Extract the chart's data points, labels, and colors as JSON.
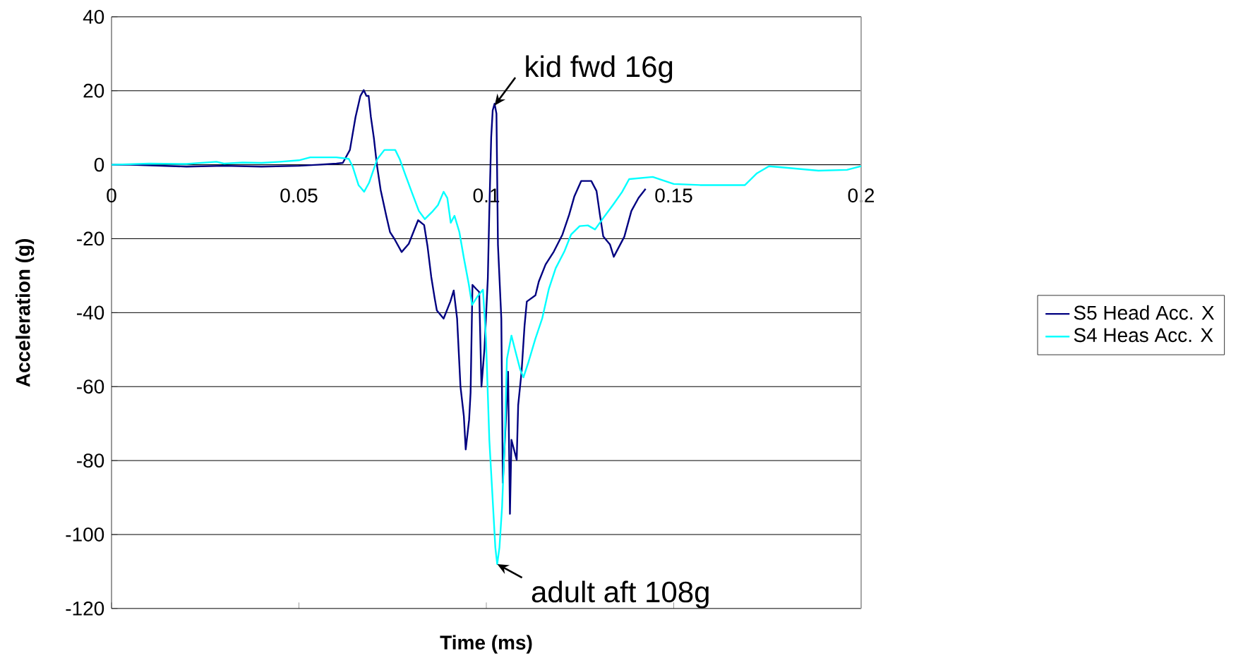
{
  "chart_data": {
    "type": "line",
    "xlabel": "Time (ms)",
    "ylabel": "Acceleration (g)",
    "xlim": [
      0,
      0.2
    ],
    "ylim": [
      -120,
      40
    ],
    "xticks": [
      0,
      0.05,
      0.1,
      0.15,
      0.2
    ],
    "yticks": [
      -120,
      -100,
      -80,
      -60,
      -40,
      -20,
      0,
      20,
      40
    ],
    "grid": "y",
    "legend": "right",
    "marker": "none",
    "line_style": "solid",
    "annotations": [
      {
        "text": "kid fwd 16g",
        "x": 0.1022,
        "y": 16
      },
      {
        "text": "adult aft 108g",
        "x": 0.1029,
        "y": -108
      }
    ],
    "series": [
      {
        "name": "S5 Head Acc. X",
        "color": "#000080",
        "x": [
          0,
          0.005,
          0.02,
          0.03,
          0.04,
          0.05,
          0.055,
          0.06,
          0.0617,
          0.0636,
          0.0651,
          0.0664,
          0.0673,
          0.068,
          0.0686,
          0.0692,
          0.07,
          0.0708,
          0.0718,
          0.0733,
          0.0743,
          0.0755,
          0.0774,
          0.0793,
          0.0818,
          0.0834,
          0.0843,
          0.0853,
          0.0862,
          0.0868,
          0.0886,
          0.0904,
          0.0913,
          0.0922,
          0.0931,
          0.094,
          0.0945,
          0.0954,
          0.0958,
          0.0963,
          0.0972,
          0.0981,
          0.0987,
          0.0995,
          0.1004,
          0.1008,
          0.1013,
          0.1017,
          0.1022,
          0.1027,
          0.1031,
          0.104,
          0.1044,
          0.1054,
          0.1058,
          0.1063,
          0.1067,
          0.1081,
          0.1085,
          0.1094,
          0.1102,
          0.1108,
          0.1131,
          0.114,
          0.1158,
          0.118,
          0.1203,
          0.1221,
          0.1235,
          0.1253,
          0.128,
          0.1294,
          0.1303,
          0.1312,
          0.133,
          0.134,
          0.1368,
          0.1387,
          0.1406,
          0.1425
        ],
        "values": [
          0,
          0,
          -0.5,
          -0.3,
          -0.5,
          -0.3,
          0,
          0.3,
          0.5,
          4,
          12.9,
          18.6,
          20.2,
          18.6,
          18.6,
          12.9,
          7.2,
          0,
          -6.8,
          -13.8,
          -18.2,
          -20.1,
          -23.6,
          -21.4,
          -15,
          -16.3,
          -22,
          -30.3,
          -36,
          -39.4,
          -41.6,
          -37,
          -34,
          -41.6,
          -60,
          -68,
          -77,
          -69,
          -61.6,
          -32.5,
          -33.5,
          -34.4,
          -60,
          -49.8,
          -30.7,
          -12.5,
          7.5,
          14.7,
          16.5,
          13.8,
          -21.6,
          -41.6,
          -86,
          -65,
          -56,
          -94.4,
          -74.4,
          -79.8,
          -65,
          -56,
          -43.5,
          -37,
          -35.3,
          -31.6,
          -27,
          -23.5,
          -18.9,
          -13.5,
          -8.5,
          -4.4,
          -4.4,
          -7.1,
          -13.5,
          -19.4,
          -21.6,
          -24.9,
          -19.5,
          -12.5,
          -9,
          -6.5
        ]
      },
      {
        "name": "S4 Heas Acc. X",
        "color": "#00ffff",
        "x": [
          0,
          0.01,
          0.02,
          0.028,
          0.03,
          0.035,
          0.04,
          0.045,
          0.05,
          0.053,
          0.06,
          0.0633,
          0.0643,
          0.0659,
          0.0674,
          0.0687,
          0.07,
          0.0709,
          0.0728,
          0.0757,
          0.0769,
          0.0785,
          0.0801,
          0.082,
          0.0836,
          0.0855,
          0.0871,
          0.0886,
          0.0896,
          0.0905,
          0.0915,
          0.0928,
          0.094,
          0.0953,
          0.0962,
          0.0978,
          0.0991,
          0.0999,
          0.1008,
          0.1017,
          0.1024,
          0.1029,
          0.1035,
          0.1042,
          0.1049,
          0.1055,
          0.1067,
          0.1076,
          0.109,
          0.1099,
          0.1112,
          0.1131,
          0.1149,
          0.1167,
          0.1185,
          0.1208,
          0.1226,
          0.1249,
          0.1271,
          0.129,
          0.1312,
          0.1339,
          0.1362,
          0.1381,
          0.1444,
          0.15,
          0.157,
          0.169,
          0.1722,
          0.1754,
          0.1798,
          0.1886,
          0.1962,
          0.2
        ],
        "values": [
          0,
          0.3,
          0.2,
          0.8,
          0.3,
          0.6,
          0.5,
          0.8,
          1.2,
          2,
          2,
          1.6,
          -0.4,
          -5.5,
          -7.3,
          -4.9,
          -1.1,
          1.5,
          4,
          4,
          1.5,
          -3,
          -7.4,
          -12.5,
          -14.7,
          -12.8,
          -10.9,
          -7.3,
          -9,
          -15.7,
          -13.8,
          -18.2,
          -25.2,
          -32.2,
          -37.9,
          -35.4,
          -33.8,
          -47,
          -74.4,
          -90.7,
          -103.5,
          -108,
          -103.5,
          -92.5,
          -74.4,
          -52.5,
          -46.2,
          -49.8,
          -55.3,
          -57.5,
          -53.5,
          -47,
          -41.6,
          -33.5,
          -28,
          -23.5,
          -18.9,
          -16.6,
          -16.4,
          -17.5,
          -14.4,
          -10.7,
          -7.4,
          -3.9,
          -3.3,
          -5.2,
          -5.5,
          -5.5,
          -2.3,
          -0.4,
          -0.8,
          -1.6,
          -1.4,
          -0.4
        ]
      }
    ]
  }
}
